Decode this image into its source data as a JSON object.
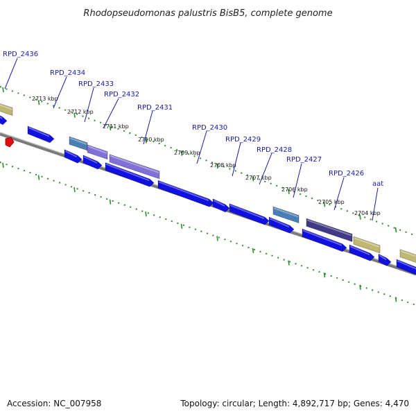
{
  "title": "Rhodopseudomonas palustris BisB5, complete genome",
  "footer": {
    "accession": "Accession: NC_007958",
    "summary": "Topology: circular; Length: 4,892,717 bp; Genes: 4,470"
  },
  "colors": {
    "cds": "#1010e0",
    "rna_khaki": "#c0b870",
    "steel": "#4a7fb5",
    "lavender": "#8070d8",
    "dark_violet": "#403a86",
    "backbone": "#7a7a7a",
    "ticks": "#2a8c2a",
    "label": "#1a1aa6",
    "marker": "#e01010"
  },
  "gene_labels": [
    {
      "text": "RPD_2436"
    },
    {
      "text": "RPD_2434"
    },
    {
      "text": "RPD_2433"
    },
    {
      "text": "RPD_2432"
    },
    {
      "text": "RPD_2431"
    },
    {
      "text": "RPD_2430"
    },
    {
      "text": "RPD_2429"
    },
    {
      "text": "RPD_2428"
    },
    {
      "text": "RPD_2427"
    },
    {
      "text": "RPD_2426"
    },
    {
      "text": "aat"
    }
  ],
  "tick_labels": [
    {
      "text": "2713 kbp"
    },
    {
      "text": "2712 kbp"
    },
    {
      "text": "2711 kbp"
    },
    {
      "text": "2710 kbp"
    },
    {
      "text": "2709 kbp"
    },
    {
      "text": "2708 kbp"
    },
    {
      "text": "2707 kbp"
    },
    {
      "text": "2706 kbp"
    },
    {
      "text": "2705 kbp"
    },
    {
      "text": "2704 kbp"
    }
  ]
}
